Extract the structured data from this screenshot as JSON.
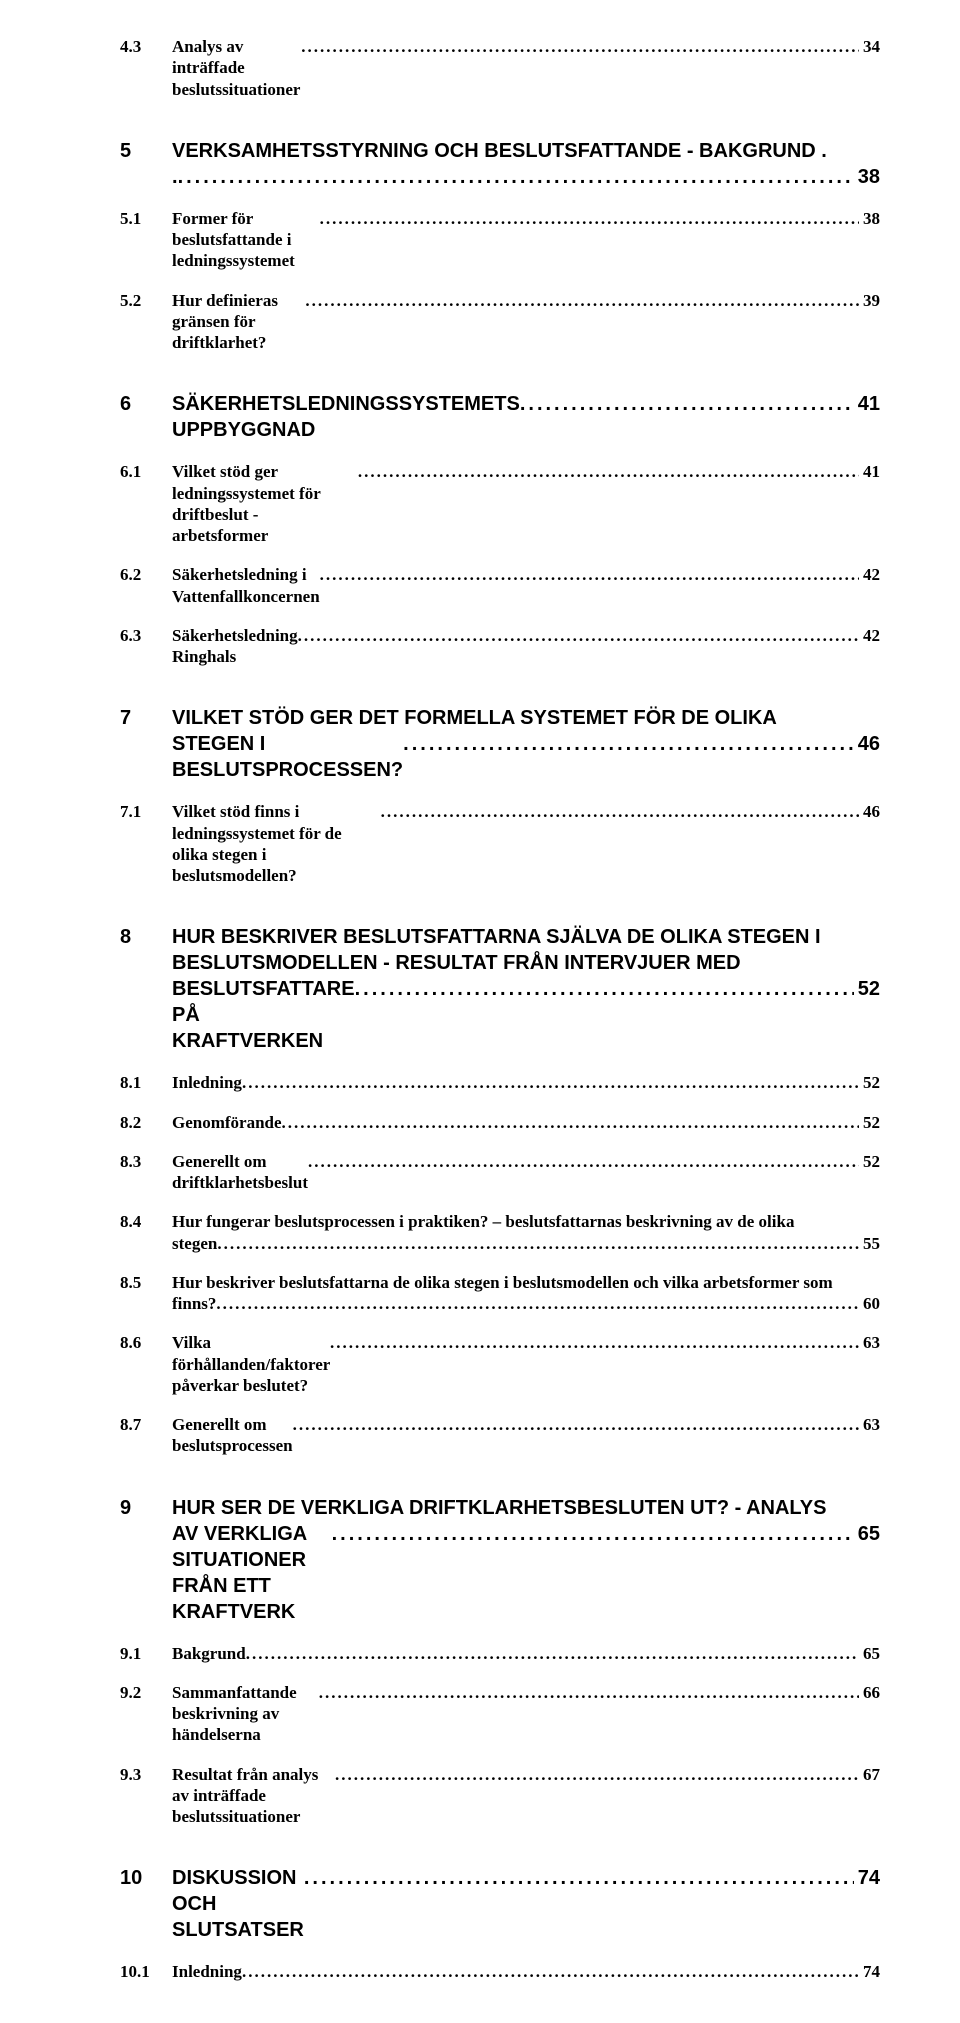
{
  "toc": [
    {
      "type": "l2",
      "num": "4.3",
      "text": "Analys av inträffade beslutssituationer",
      "page": "34",
      "first": true
    },
    {
      "type": "l1-ml",
      "num": "5",
      "lines": [
        "VERKSAMHETSSTYRNING OCH BESLUTSFATTANDE - BAKGRUND .",
        "."
      ],
      "page": "38"
    },
    {
      "type": "l2",
      "num": "5.1",
      "text": "Former för beslutsfattande i ledningssystemet",
      "page": "38"
    },
    {
      "type": "l2",
      "num": "5.2",
      "text": "Hur definieras gränsen för driftklarhet?",
      "page": "39"
    },
    {
      "type": "l1",
      "num": "6",
      "text": "SÄKERHETSLEDNINGSSYSTEMETS UPPBYGGNAD",
      "page": "41"
    },
    {
      "type": "l2",
      "num": "6.1",
      "text": "Vilket stöd ger ledningssystemet för driftbeslut - arbetsformer",
      "page": "41"
    },
    {
      "type": "l2",
      "num": "6.2",
      "text": "Säkerhetsledning i Vattenfallkoncernen",
      "page": "42"
    },
    {
      "type": "l2",
      "num": "6.3",
      "text": "Säkerhetsledning Ringhals",
      "page": "42"
    },
    {
      "type": "l1-ml",
      "num": "7",
      "lines": [
        "VILKET STÖD GER DET FORMELLA SYSTEMET FÖR DE OLIKA",
        "STEGEN I BESLUTSPROCESSEN?"
      ],
      "page": "46"
    },
    {
      "type": "l2",
      "num": "7.1",
      "text": "Vilket stöd finns i ledningssystemet för de olika stegen i beslutsmodellen?",
      "page": "46"
    },
    {
      "type": "l1-ml",
      "num": "8",
      "lines": [
        "HUR BESKRIVER BESLUTSFATTARNA SJÄLVA DE OLIKA STEGEN I",
        "BESLUTSMODELLEN - RESULTAT FRÅN INTERVJUER MED",
        "BESLUTSFATTARE PÅ KRAFTVERKEN"
      ],
      "page": "52"
    },
    {
      "type": "l2",
      "num": "8.1",
      "text": "Inledning",
      "page": "52"
    },
    {
      "type": "l2",
      "num": "8.2",
      "text": "Genomförande",
      "page": "52"
    },
    {
      "type": "l2",
      "num": "8.3",
      "text": "Generellt om driftklarhetsbeslut",
      "page": "52"
    },
    {
      "type": "l2-ml",
      "num": "8.4",
      "line1": "Hur fungerar beslutsprocessen i praktiken? – beslutsfattarnas beskrivning av de olika",
      "line2": "stegen",
      "page": "55"
    },
    {
      "type": "l2-ml",
      "num": "8.5",
      "line1": "Hur beskriver beslutsfattarna de olika stegen i beslutsmodellen och vilka arbetsformer som",
      "line2": "finns?",
      "page": "60"
    },
    {
      "type": "l2",
      "num": "8.6",
      "text": "Vilka förhållanden/faktorer påverkar beslutet?",
      "page": "63"
    },
    {
      "type": "l2",
      "num": "8.7",
      "text": "Generellt om beslutsprocessen",
      "page": "63"
    },
    {
      "type": "l1-ml",
      "num": "9",
      "lines": [
        "HUR SER DE VERKLIGA DRIFTKLARHETSBESLUTEN UT? - ANALYS",
        "AV VERKLIGA SITUATIONER FRÅN ETT KRAFTVERK"
      ],
      "page": "65"
    },
    {
      "type": "l2",
      "num": "9.1",
      "text": "Bakgrund",
      "page": "65"
    },
    {
      "type": "l2",
      "num": "9.2",
      "text": "Sammanfattande beskrivning av händelserna",
      "page": "66"
    },
    {
      "type": "l2",
      "num": "9.3",
      "text": "Resultat från analys av inträffade beslutssituationer",
      "page": "67"
    },
    {
      "type": "l1",
      "num": "10",
      "text": "DISKUSSION OCH SLUTSATSER",
      "page": "74"
    },
    {
      "type": "l2",
      "num": "10.1",
      "text": "Inledning",
      "page": "74"
    }
  ]
}
